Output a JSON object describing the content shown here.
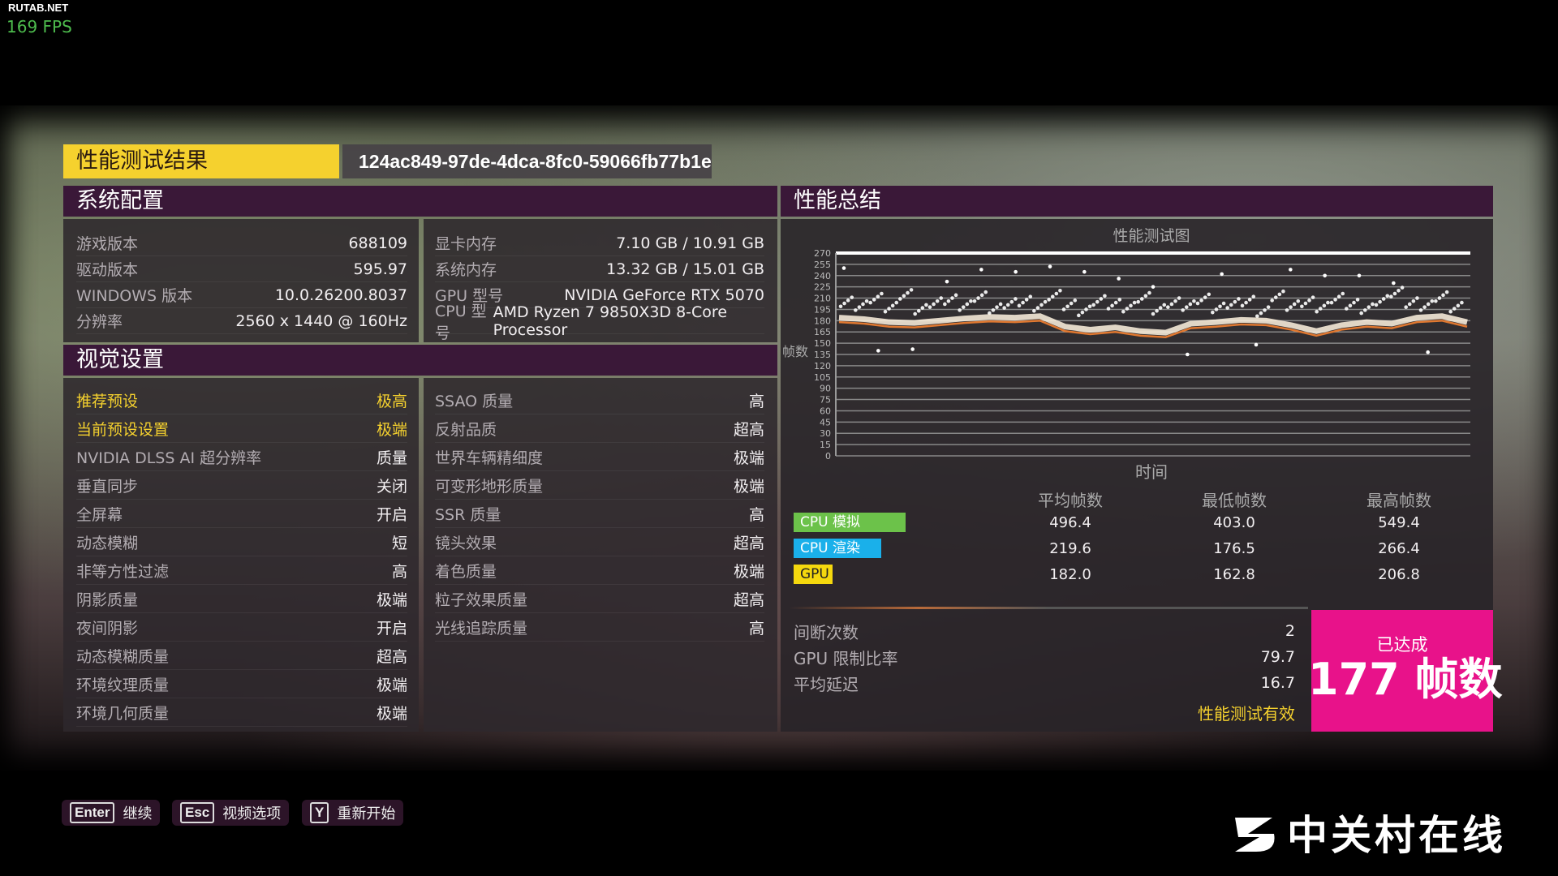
{
  "overlay": {
    "watermark": "RUTAB.NET",
    "fps": "169 FPS"
  },
  "header": {
    "title": "性能测试结果",
    "benchmark_id": "124ac849-97de-4dca-8fc0-59066fb77b1e"
  },
  "system": {
    "title": "系统配置",
    "left": [
      {
        "k": "游戏版本",
        "v": "688109"
      },
      {
        "k": "驱动版本",
        "v": "595.97"
      },
      {
        "k": "WINDOWS 版本",
        "v": "10.0.26200.8037"
      },
      {
        "k": "分辨率",
        "v": "2560 x 1440 @ 160Hz"
      }
    ],
    "right": [
      {
        "k": "显卡内存",
        "v": "7.10 GB / 10.91 GB"
      },
      {
        "k": "系统内存",
        "v": "13.32 GB / 15.01 GB"
      },
      {
        "k": "GPU 型号",
        "v": "NVIDIA GeForce RTX 5070"
      },
      {
        "k": "CPU 型号",
        "v": "AMD Ryzen 7 9850X3D 8-Core Processor"
      }
    ]
  },
  "visual": {
    "title": "视觉设置",
    "left": [
      {
        "k": "推荐预设",
        "v": "极高"
      },
      {
        "k": "当前预设设置",
        "v": "极端"
      },
      {
        "k": "NVIDIA DLSS AI 超分辨率",
        "v": "质量"
      },
      {
        "k": "垂直同步",
        "v": "关闭"
      },
      {
        "k": "全屏幕",
        "v": "开启"
      },
      {
        "k": "动态模糊",
        "v": "短"
      },
      {
        "k": "非等方性过滤",
        "v": "高"
      },
      {
        "k": "阴影质量",
        "v": "极端"
      },
      {
        "k": "夜间阴影",
        "v": "开启"
      },
      {
        "k": "动态模糊质量",
        "v": "超高"
      },
      {
        "k": "环境纹理质量",
        "v": "极端"
      },
      {
        "k": "环境几何质量",
        "v": "极端"
      }
    ],
    "right": [
      {
        "k": "SSAO 质量",
        "v": "高"
      },
      {
        "k": "反射品质",
        "v": "超高"
      },
      {
        "k": "世界车辆精细度",
        "v": "极端"
      },
      {
        "k": "可变形地形质量",
        "v": "极端"
      },
      {
        "k": "SSR 质量",
        "v": "高"
      },
      {
        "k": "镜头效果",
        "v": "超高"
      },
      {
        "k": "着色质量",
        "v": "极端"
      },
      {
        "k": "粒子效果质量",
        "v": "超高"
      },
      {
        "k": "光线追踪质量",
        "v": "高"
      }
    ]
  },
  "summary": {
    "title": "性能总结",
    "columns": [
      "平均帧数",
      "最低帧数",
      "最高帧数"
    ],
    "rows": [
      {
        "label": "CPU 模拟",
        "color": "#6cc24a",
        "avg": "496.4",
        "min": "403.0",
        "max": "549.4"
      },
      {
        "label": "CPU 渲染",
        "color": "#1ab0ea",
        "avg": "219.6",
        "min": "176.5",
        "max": "266.4"
      },
      {
        "label": "GPU",
        "color": "#f5d80e",
        "avg": "182.0",
        "min": "162.8",
        "max": "206.8"
      }
    ],
    "extra": [
      {
        "k": "间断次数",
        "v": "2"
      },
      {
        "k": "GPU 限制比率",
        "v": "79.7"
      },
      {
        "k": "平均延迟",
        "v": "16.7"
      }
    ],
    "valid": "性能测试有效",
    "achieved_label": "已达成",
    "achieved_value": "177 帧数"
  },
  "chart_data": {
    "type": "scatter",
    "title": "性能测试图",
    "xlabel": "时间",
    "ylabel": "帧数",
    "ylim": [
      0,
      270
    ],
    "yticks": [
      0,
      15,
      30,
      45,
      60,
      75,
      90,
      105,
      120,
      135,
      150,
      165,
      180,
      195,
      210,
      225,
      240,
      255,
      270
    ],
    "grid": true,
    "line_color": "#e07830",
    "point_color": "#ffffff",
    "line": [
      178,
      176,
      172,
      171,
      174,
      177,
      179,
      178,
      180,
      166,
      162,
      165,
      160,
      158,
      170,
      172,
      175,
      174,
      168,
      160,
      168,
      172,
      170,
      178,
      180,
      172
    ],
    "points": [
      205,
      200,
      210,
      198,
      215,
      195,
      204,
      208,
      200,
      212,
      196,
      203,
      206,
      199,
      214,
      201,
      193,
      207,
      202,
      198,
      211,
      195,
      204,
      200,
      209,
      197,
      203,
      206,
      192,
      213,
      200,
      205,
      198,
      210,
      202,
      196,
      207,
      218,
      204,
      200,
      212,
      198
    ],
    "outliers": [
      250,
      245,
      240,
      232,
      135,
      138,
      252,
      248,
      142,
      225,
      230,
      245,
      148,
      140,
      236,
      240,
      248,
      242
    ]
  },
  "footer": {
    "buttons": [
      {
        "key": "Enter",
        "label": "继续"
      },
      {
        "key": "Esc",
        "label": "视频选项"
      },
      {
        "key": "Y",
        "label": "重新开始"
      }
    ],
    "logo": "中关村在线"
  }
}
